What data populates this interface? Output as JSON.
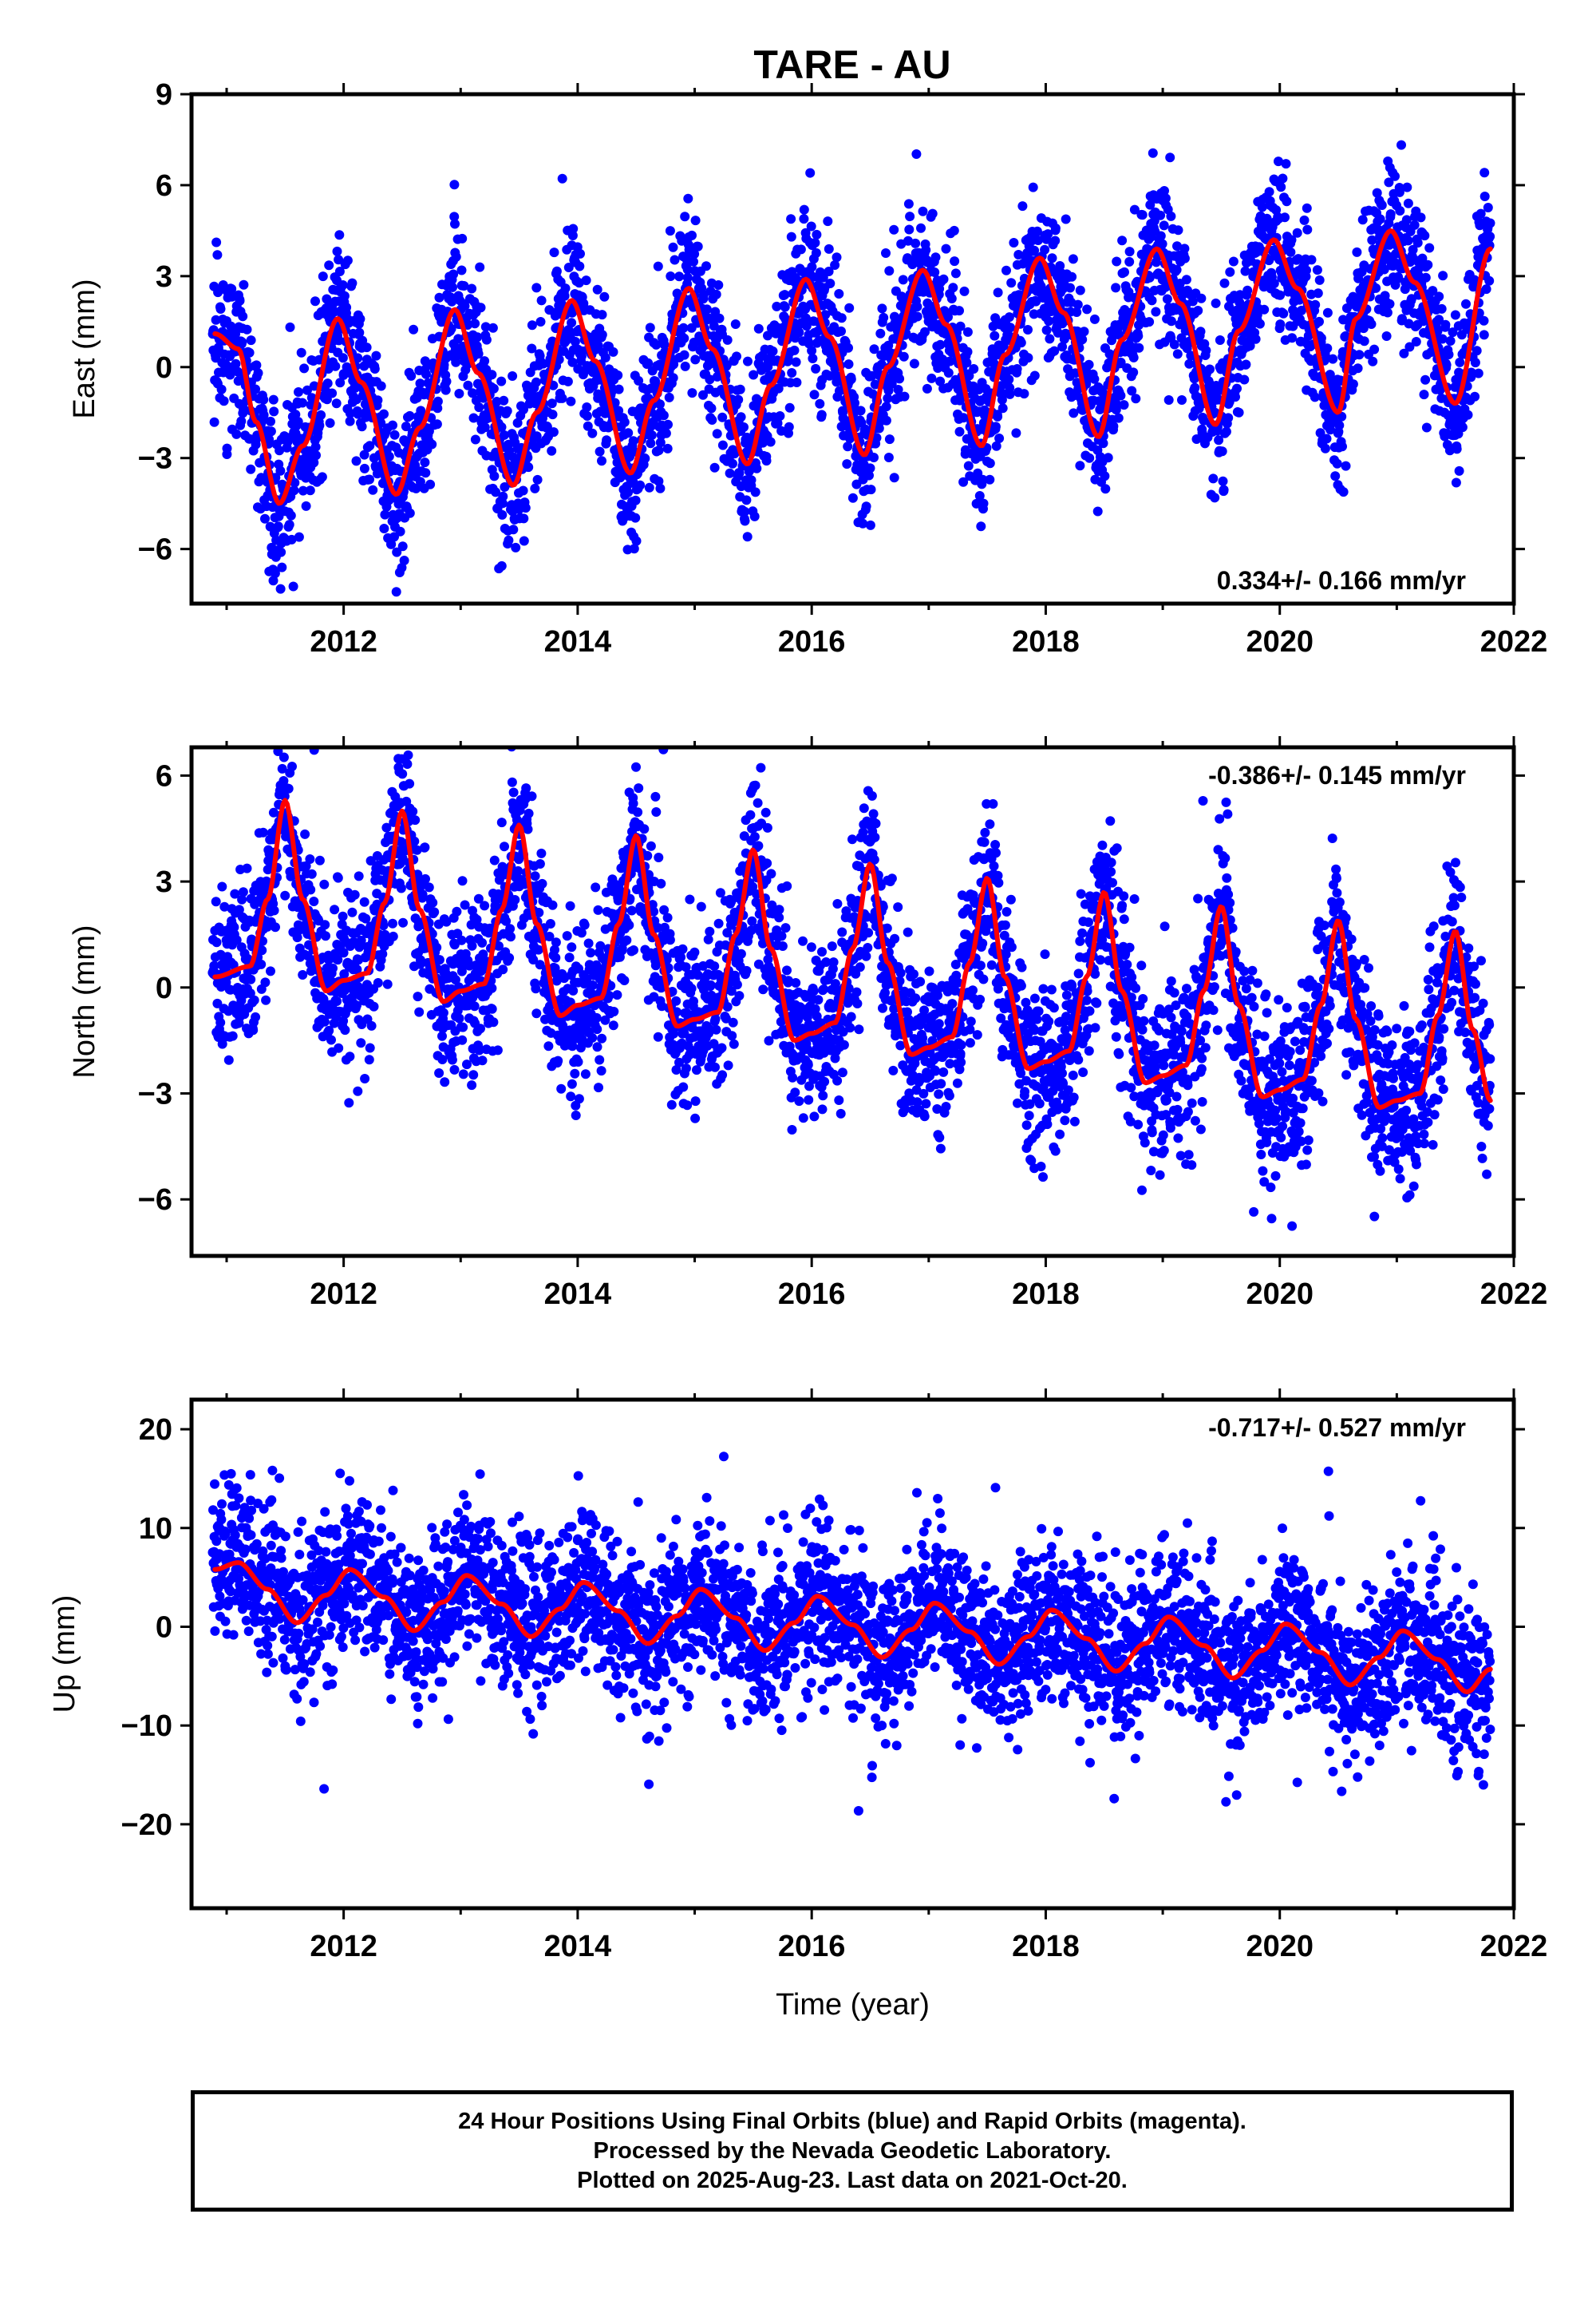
{
  "title": "TARE - AU",
  "chart_data": [
    {
      "type": "scatter",
      "panel": "east",
      "ylabel": "East (mm)",
      "xlabel": "",
      "xlim": [
        2010.7,
        2022.0
      ],
      "ylim": [
        -7.8,
        9.0
      ],
      "yticks": [
        -6,
        -3,
        0,
        3,
        6,
        9
      ],
      "ytick_labels": [
        "−6",
        "−3",
        "0",
        "3",
        "6",
        "9"
      ],
      "xticks": [
        2012,
        2014,
        2016,
        2018,
        2020,
        2022
      ],
      "xtick_labels": [
        "2012",
        "2014",
        "2016",
        "2018",
        "2020",
        "2022"
      ],
      "annotation": "0.334+/- 0.166 mm/yr",
      "model_fit": {
        "name": "",
        "x": [
          2010.9,
          2011.1,
          2011.25,
          2011.45,
          2011.65,
          2011.95,
          2012.15,
          2012.45,
          2012.65,
          2012.95,
          2013.15,
          2013.45,
          2013.65,
          2013.95,
          2014.15,
          2014.45,
          2014.65,
          2014.95,
          2015.15,
          2015.45,
          2015.65,
          2015.95,
          2016.15,
          2016.45,
          2016.65,
          2016.95,
          2017.15,
          2017.45,
          2017.65,
          2017.95,
          2018.15,
          2018.45,
          2018.65,
          2018.95,
          2019.15,
          2019.45,
          2019.65,
          2019.95,
          2020.15,
          2020.5,
          2020.65,
          2020.95,
          2021.15,
          2021.5,
          2021.8
        ],
        "values": [
          1.1,
          0.6,
          -1.8,
          -4.5,
          -2.6,
          1.6,
          -0.5,
          -4.2,
          -2.0,
          1.9,
          -0.2,
          -3.9,
          -1.5,
          2.2,
          0.2,
          -3.5,
          -1.1,
          2.6,
          0.6,
          -3.2,
          -0.6,
          2.9,
          1.0,
          -2.9,
          0.0,
          3.2,
          1.4,
          -2.6,
          0.4,
          3.6,
          1.8,
          -2.3,
          0.9,
          3.9,
          2.1,
          -1.9,
          1.2,
          4.2,
          2.6,
          -1.5,
          1.6,
          4.5,
          2.8,
          -1.2,
          3.9
        ]
      },
      "scatter_style": "daily positions, about 3800 points, spread about ±1.3 mm around the fit, with a few outliers"
    },
    {
      "type": "scatter",
      "panel": "north",
      "ylabel": "North (mm)",
      "xlabel": "",
      "xlim": [
        2010.7,
        2022.0
      ],
      "ylim": [
        -7.6,
        6.8
      ],
      "yticks": [
        -6,
        -3,
        0,
        3,
        6
      ],
      "ytick_labels": [
        "−6",
        "−3",
        "0",
        "3",
        "6"
      ],
      "xticks": [
        2012,
        2014,
        2016,
        2018,
        2020,
        2022
      ],
      "xtick_labels": [
        "2012",
        "2014",
        "2016",
        "2018",
        "2020",
        "2022"
      ],
      "annotation": "-0.386+/- 0.145 mm/yr",
      "model_fit": {
        "name": "",
        "x": [
          2010.9,
          2011.2,
          2011.35,
          2011.5,
          2011.65,
          2011.85,
          2012.0,
          2012.2,
          2012.35,
          2012.5,
          2012.65,
          2012.85,
          2013.0,
          2013.2,
          2013.35,
          2013.5,
          2013.65,
          2013.85,
          2014.0,
          2014.2,
          2014.35,
          2014.5,
          2014.65,
          2014.85,
          2015.0,
          2015.2,
          2015.35,
          2015.5,
          2015.65,
          2015.85,
          2016.0,
          2016.2,
          2016.35,
          2016.5,
          2016.65,
          2016.85,
          2017.0,
          2017.2,
          2017.35,
          2017.5,
          2017.65,
          2017.85,
          2018.0,
          2018.2,
          2018.35,
          2018.5,
          2018.65,
          2018.85,
          2019.0,
          2019.2,
          2019.35,
          2019.5,
          2019.65,
          2019.85,
          2020.0,
          2020.2,
          2020.35,
          2020.5,
          2020.65,
          2020.85,
          2021.0,
          2021.2,
          2021.35,
          2021.5,
          2021.65,
          2021.8
        ],
        "values": [
          0.3,
          0.6,
          2.5,
          5.3,
          2.5,
          -0.1,
          0.2,
          0.4,
          2.4,
          5.0,
          2.2,
          -0.4,
          -0.1,
          0.1,
          2.2,
          4.6,
          1.8,
          -0.8,
          -0.5,
          -0.3,
          1.8,
          4.3,
          1.5,
          -1.1,
          -0.9,
          -0.7,
          1.5,
          3.9,
          1.1,
          -1.5,
          -1.3,
          -1.0,
          1.1,
          3.5,
          0.7,
          -1.9,
          -1.7,
          -1.4,
          0.7,
          3.1,
          0.3,
          -2.3,
          -2.1,
          -1.8,
          0.3,
          2.7,
          -0.1,
          -2.7,
          -2.5,
          -2.2,
          -0.1,
          2.3,
          -0.5,
          -3.1,
          -2.9,
          -2.6,
          -0.5,
          1.9,
          -0.9,
          -3.4,
          -3.2,
          -3.0,
          -0.8,
          1.6,
          -1.2,
          -3.2
        ]
      },
      "scatter_style": "daily positions, about 3800 points, spread about ±1.2 mm around the fit, with a few outliers"
    },
    {
      "type": "scatter",
      "panel": "up",
      "ylabel": "Up (mm)",
      "xlabel": "Time (year)",
      "xlim": [
        2010.7,
        2022.0
      ],
      "ylim": [
        -28.5,
        23.0
      ],
      "yticks": [
        -20,
        -10,
        0,
        10,
        20
      ],
      "ytick_labels": [
        "−20",
        "−10",
        "0",
        "10",
        "20"
      ],
      "xticks": [
        2012,
        2014,
        2016,
        2018,
        2020,
        2022
      ],
      "xtick_labels": [
        "2012",
        "2014",
        "2016",
        "2018",
        "2020",
        "2022"
      ],
      "annotation": "-0.717+/- 0.527 mm/yr",
      "model_fit": {
        "name": "",
        "x": [
          2010.9,
          2011.1,
          2011.35,
          2011.6,
          2011.85,
          2012.05,
          2012.35,
          2012.6,
          2012.85,
          2013.05,
          2013.35,
          2013.6,
          2013.85,
          2014.05,
          2014.35,
          2014.6,
          2014.85,
          2015.05,
          2015.35,
          2015.6,
          2015.85,
          2016.05,
          2016.35,
          2016.6,
          2016.85,
          2017.05,
          2017.35,
          2017.6,
          2017.85,
          2018.05,
          2018.35,
          2018.6,
          2018.85,
          2019.05,
          2019.35,
          2019.6,
          2019.85,
          2020.05,
          2020.35,
          2020.6,
          2020.85,
          2021.05,
          2021.35,
          2021.6,
          2021.8
        ],
        "values": [
          5.8,
          6.5,
          3.8,
          0.4,
          3.2,
          5.8,
          3.0,
          -0.4,
          2.5,
          5.2,
          2.3,
          -1.0,
          1.8,
          4.5,
          1.6,
          -1.7,
          1.1,
          3.8,
          0.9,
          -2.4,
          0.4,
          3.1,
          0.2,
          -3.1,
          -0.3,
          2.4,
          -0.5,
          -3.8,
          -1.0,
          1.7,
          -1.2,
          -4.5,
          -1.7,
          1.0,
          -1.9,
          -5.2,
          -2.4,
          0.3,
          -2.6,
          -5.9,
          -3.1,
          -0.4,
          -3.3,
          -6.6,
          -4.3
        ]
      },
      "scatter_style": "daily positions, about 3800 points, spread about ±4 mm around the fit, with outliers to about ±20 mm"
    }
  ],
  "colors": {
    "points": "#0000ff",
    "fit": "#ff0000",
    "frame": "#000000",
    "background": "#ffffff"
  },
  "caption": {
    "line1": "24 Hour Positions Using Final Orbits (blue) and Rapid Orbits (magenta).",
    "line2": "Processed by the Nevada Geodetic Laboratory.",
    "line3": "Plotted on 2025-Aug-23. Last data on 2021-Oct-20."
  }
}
